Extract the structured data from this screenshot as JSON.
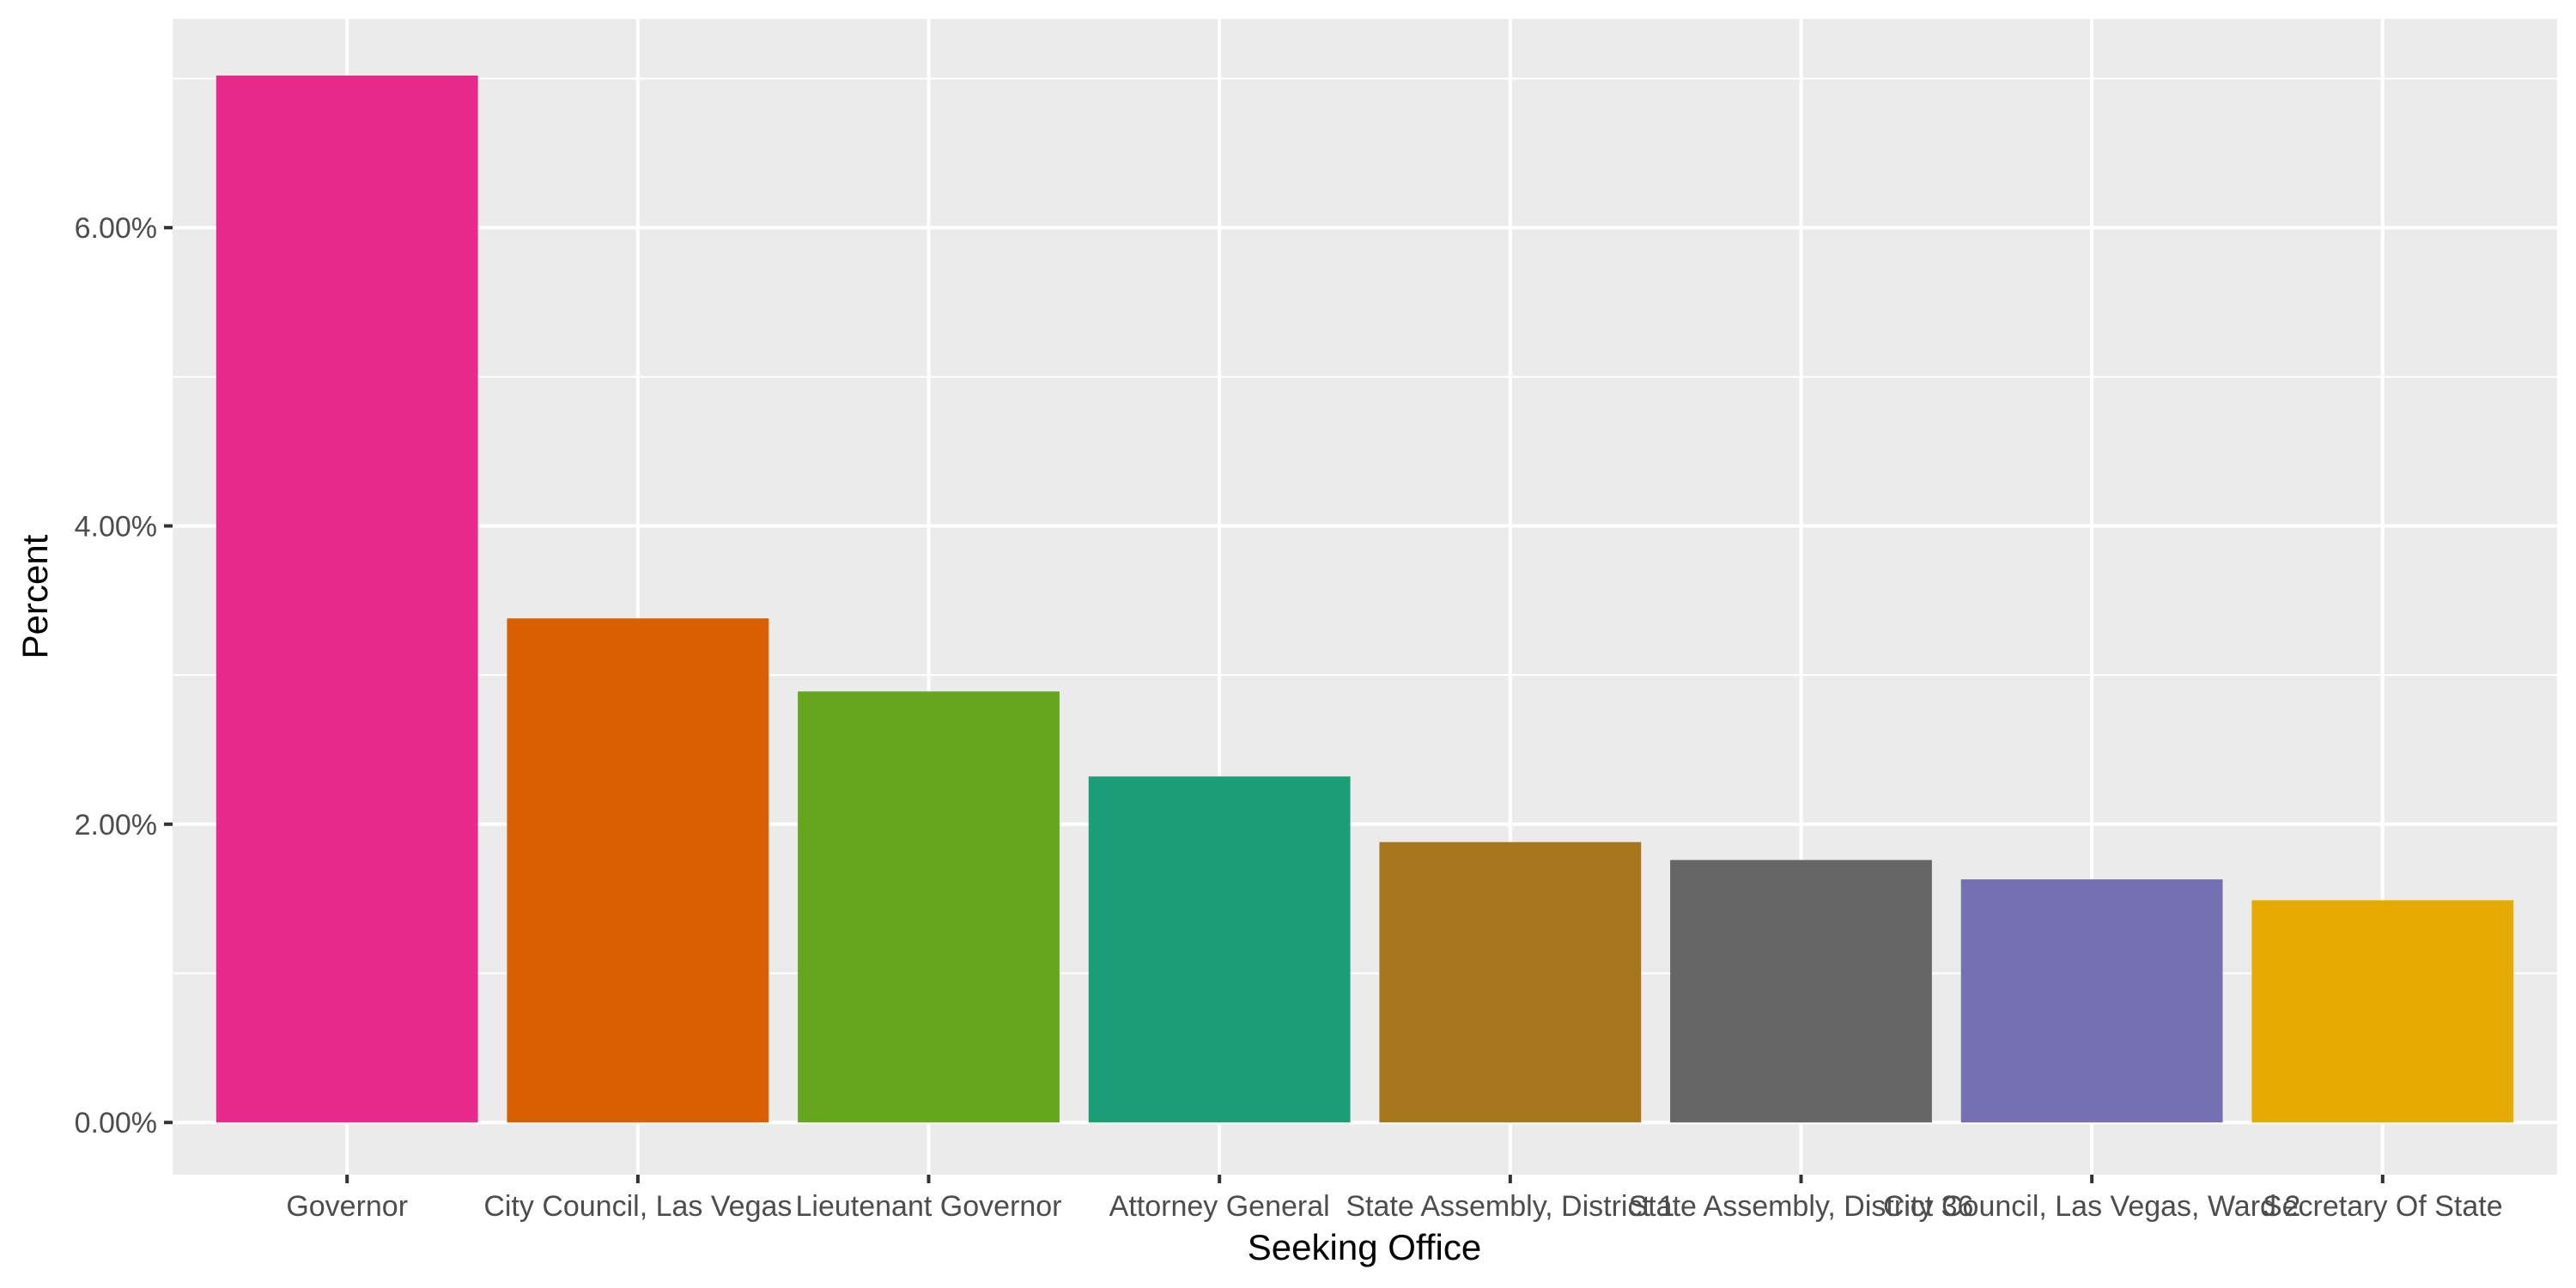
{
  "chart_data": {
    "type": "bar",
    "xlabel": "Seeking Office",
    "ylabel": "Percent",
    "ylim": [
      -0.35,
      7.4
    ],
    "y_ticks": [
      0,
      2,
      4,
      6
    ],
    "y_tick_labels": [
      "0.00%",
      "2.00%",
      "4.00%",
      "6.00%"
    ],
    "categories": [
      "Governor",
      "City Council, Las Vegas",
      "Lieutenant Governor",
      "Attorney General",
      "State Assembly, District 1",
      "State Assembly, District 36",
      "City Council, Las Vegas, Ward 2",
      "Secretary Of State"
    ],
    "values": [
      7.02,
      3.38,
      2.89,
      2.32,
      1.88,
      1.76,
      1.63,
      1.49
    ],
    "colors": [
      "#E7298A",
      "#D95F02",
      "#66A61E",
      "#1B9E77",
      "#A6761D",
      "#666666",
      "#7570B3",
      "#E6AB02"
    ],
    "grid": true,
    "legend": "none"
  }
}
